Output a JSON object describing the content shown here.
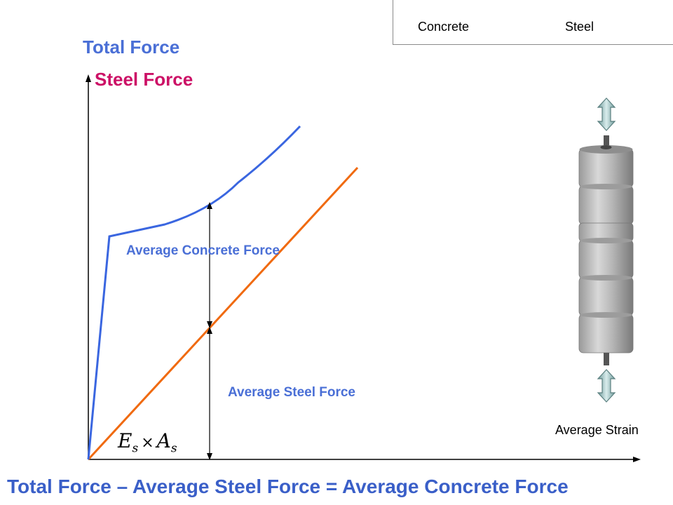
{
  "legend": {
    "concrete_label": "Concrete",
    "steel_label": "Steel"
  },
  "axes": {
    "y_label_total": "Total Force",
    "y_label_steel": "Steel Force",
    "x_label": "Average Strain"
  },
  "annotations": {
    "concrete_force": "Average Concrete Force",
    "steel_force": "Average Steel Force",
    "stiffness_E": "E",
    "stiffness_E_sub": "s",
    "stiffness_times": "×",
    "stiffness_A": "A",
    "stiffness_A_sub": "s"
  },
  "bottom_equation": "Total Force – Average Steel Force = Average Concrete Force",
  "colors": {
    "total_curve": "#3a66e0",
    "steel_line": "#f06a10",
    "axes": "#000000"
  }
}
